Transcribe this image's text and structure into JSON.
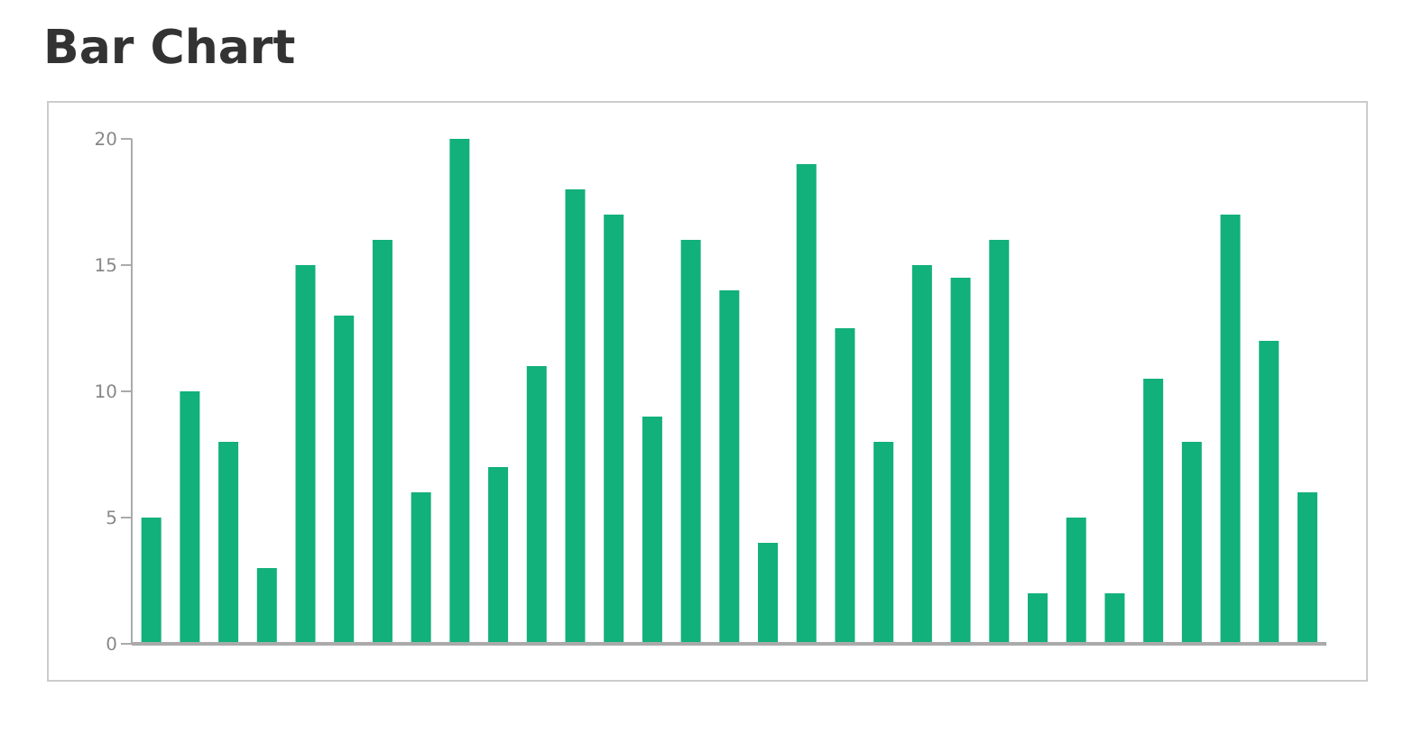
{
  "chart_data": {
    "type": "bar",
    "title": "Bar Chart",
    "categories": [
      null,
      null,
      null,
      null,
      null,
      null,
      null,
      null,
      null,
      null,
      null,
      null,
      null,
      null,
      null,
      null,
      null,
      null,
      null,
      null,
      null,
      null,
      null,
      null,
      null,
      null,
      null,
      null,
      null,
      null,
      null
    ],
    "values": [
      5,
      10,
      8,
      3,
      15,
      13,
      16,
      6,
      20,
      7,
      11,
      18,
      17,
      9,
      16,
      14,
      4,
      19,
      12.5,
      8,
      15,
      14.5,
      16,
      2,
      5,
      2,
      10.5,
      8,
      17,
      12,
      6
    ],
    "color": "#12b07a",
    "ylim": [
      0,
      20
    ],
    "yticks": [
      0,
      5,
      10,
      15,
      20
    ],
    "grid": false,
    "tick_labels": "y"
  }
}
